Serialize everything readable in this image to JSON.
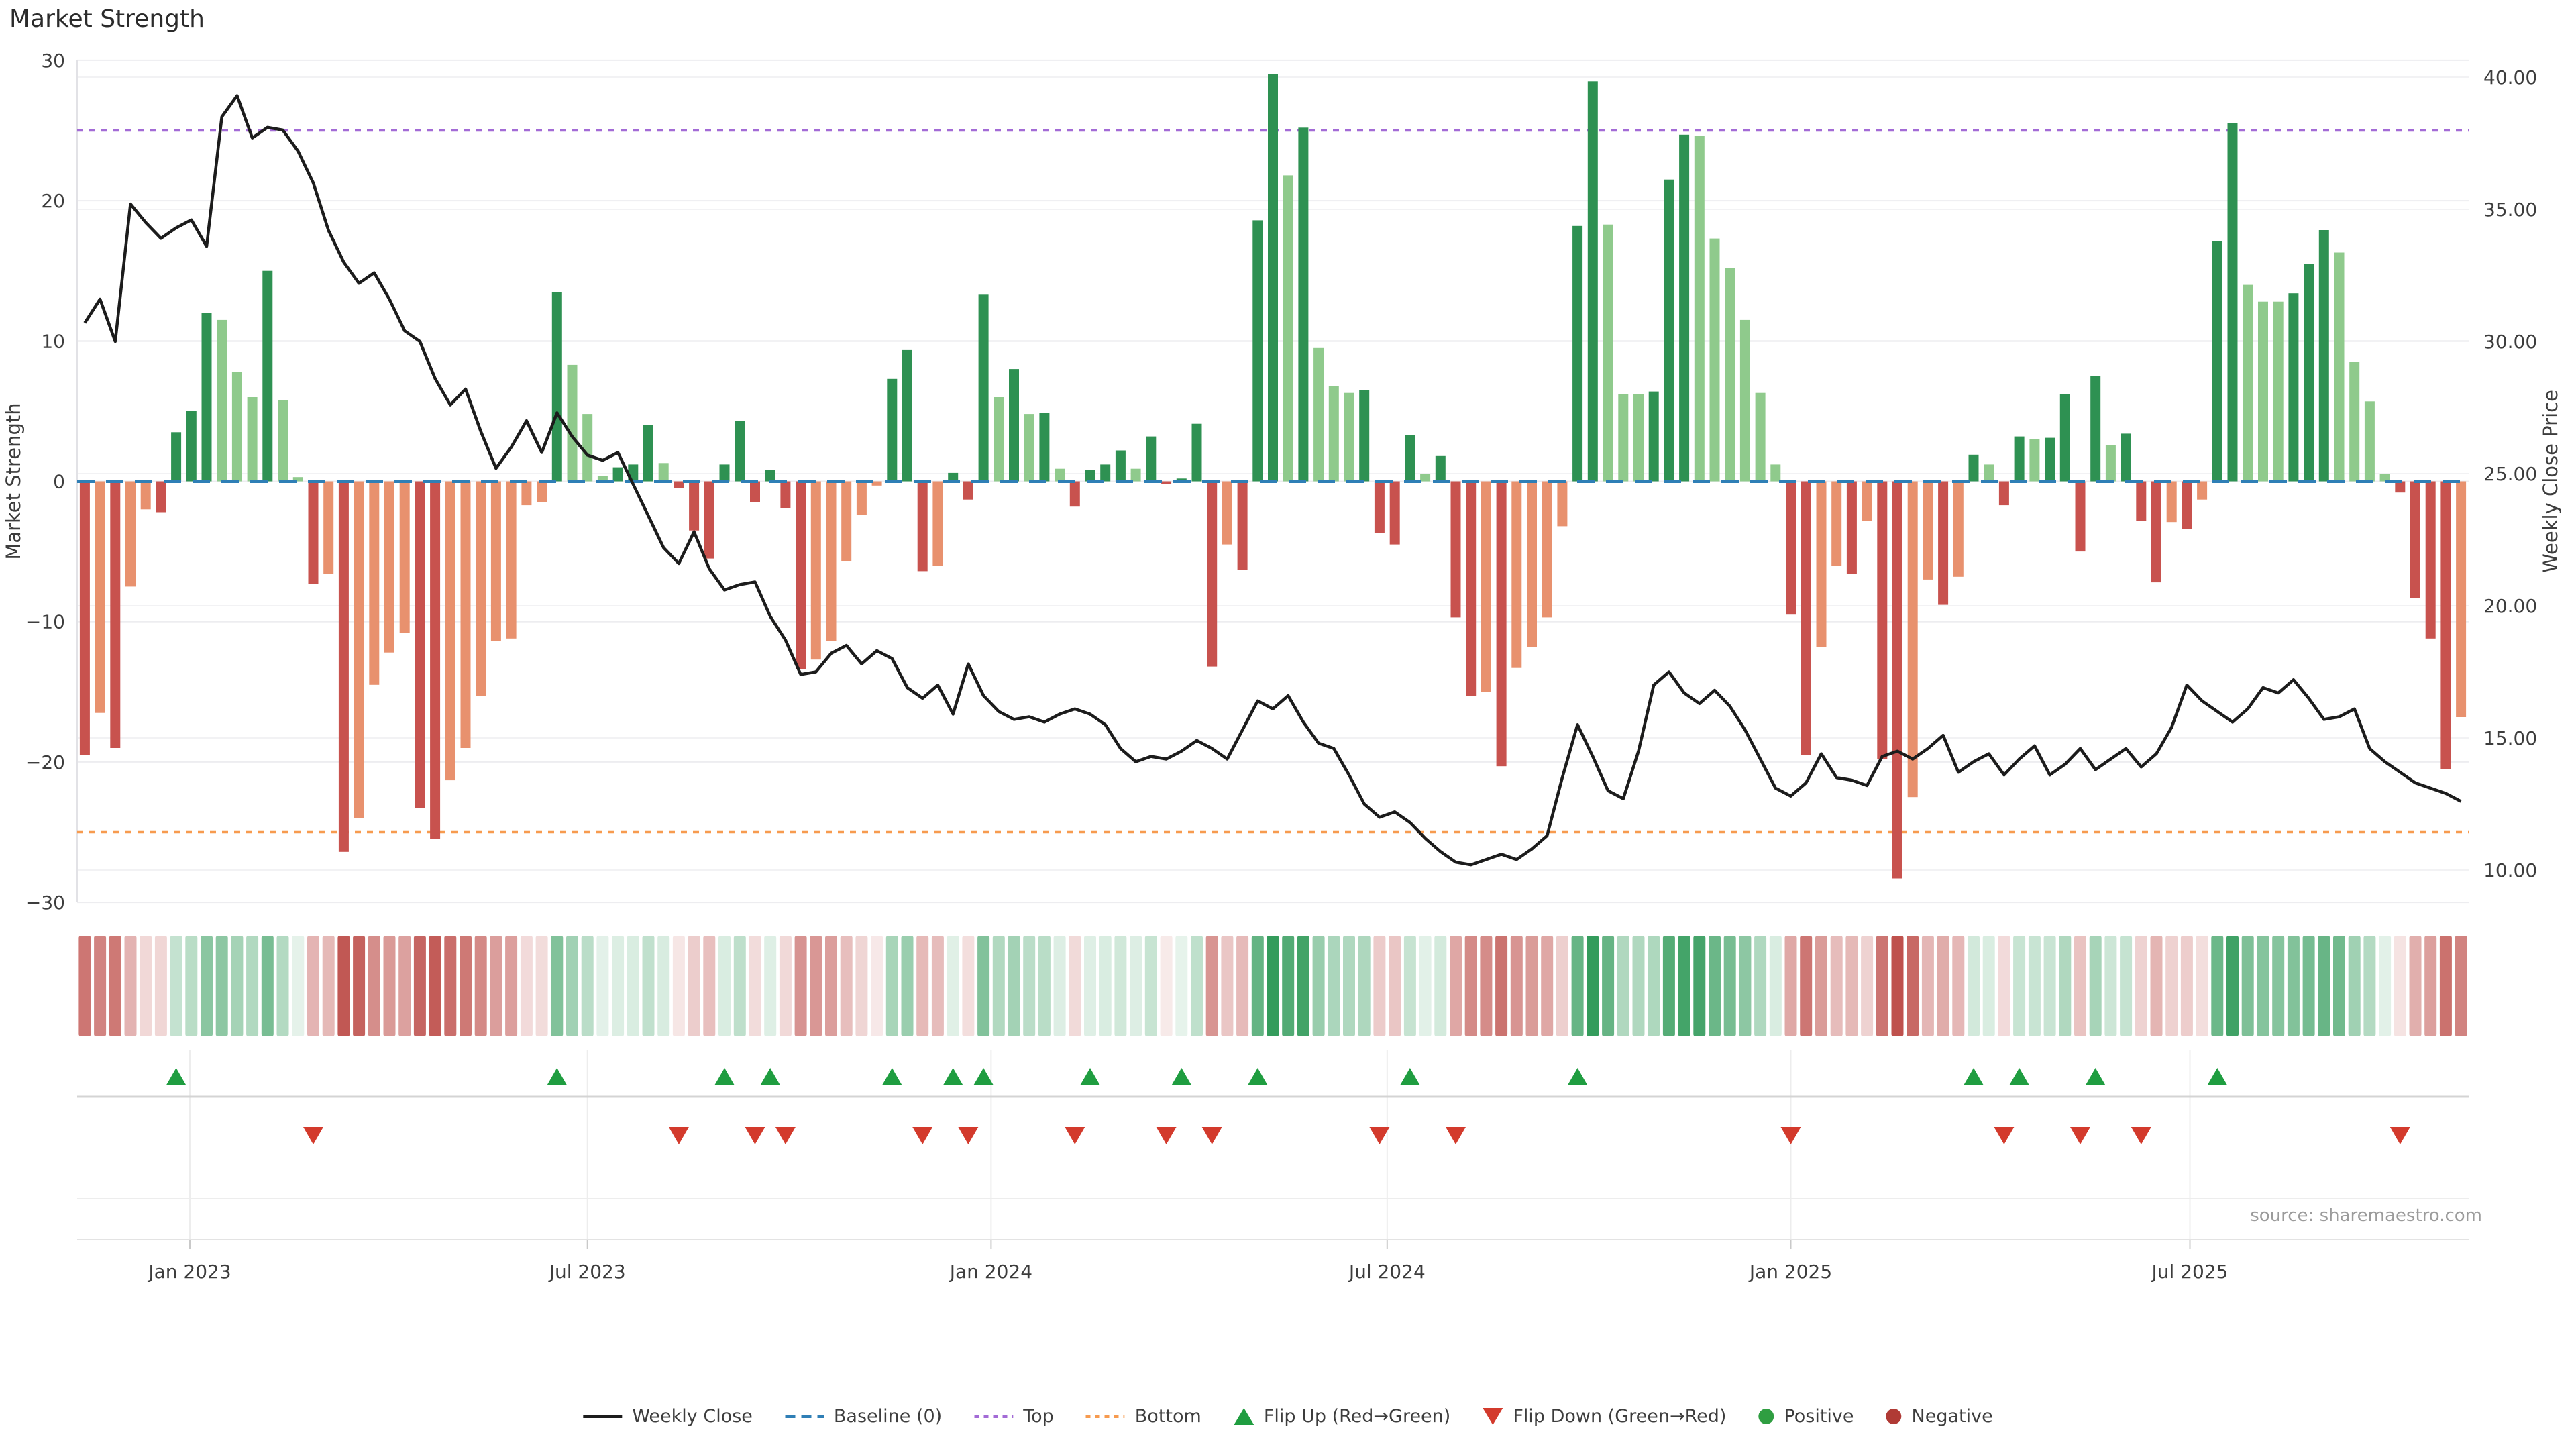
{
  "title": "Market Strength",
  "source": "source: sharemaestro.com",
  "axes": {
    "left_title": "Market Strength",
    "right_title": "Weekly Close Price",
    "left_ticks": [
      {
        "v": 30,
        "label": "30"
      },
      {
        "v": 20,
        "label": "20"
      },
      {
        "v": 10,
        "label": "10"
      },
      {
        "v": 0,
        "label": "0"
      },
      {
        "v": -10,
        "label": "−10"
      },
      {
        "v": -20,
        "label": "−20"
      },
      {
        "v": -30,
        "label": "−30"
      }
    ],
    "right_ticks": [
      {
        "p": 40,
        "label": "40.00"
      },
      {
        "p": 35,
        "label": "35.00"
      },
      {
        "p": 30,
        "label": "30.00"
      },
      {
        "p": 25,
        "label": "25.00"
      },
      {
        "p": 20,
        "label": "20.00"
      },
      {
        "p": 15,
        "label": "15.00"
      },
      {
        "p": 10,
        "label": "10.00"
      }
    ],
    "x_ticks": [
      {
        "week": 7.4,
        "label": "Jan 2023"
      },
      {
        "week": 33.5,
        "label": "Jul 2023"
      },
      {
        "week": 60.0,
        "label": "Jan 2024"
      },
      {
        "week": 86.0,
        "label": "Jul 2024"
      },
      {
        "week": 112.5,
        "label": "Jan 2025"
      },
      {
        "week": 138.7,
        "label": "Jul 2025"
      }
    ]
  },
  "legend": {
    "items": [
      {
        "label": "Weekly Close",
        "glyph": "line",
        "color": "#1c1c1c"
      },
      {
        "label": "Baseline (0)",
        "glyph": "dash",
        "color": "#2f7fb6"
      },
      {
        "label": "Top",
        "glyph": "dot",
        "color": "#a36bd6"
      },
      {
        "label": "Bottom",
        "glyph": "dot",
        "color": "#f79b4f"
      },
      {
        "label": "Flip Up (Red→Green)",
        "glyph": "tri-up",
        "color": "#1f9d40"
      },
      {
        "label": "Flip Down (Green→Red)",
        "glyph": "tri-down",
        "color": "#d33a2c"
      },
      {
        "label": "Positive",
        "glyph": "circle",
        "color": "#2f9e41"
      },
      {
        "label": "Negative",
        "glyph": "circle",
        "color": "#b03a35"
      }
    ]
  },
  "colors": {
    "pos_dark": "#2e9152",
    "pos_light": "#8fca8c",
    "neg_dark": "#c8524e",
    "neg_light": "#e8916e",
    "close_line": "#1c1c1c",
    "baseline": "#2f7fb6",
    "top_line": "#a36bd6",
    "bottom_line": "#f79b4f",
    "grid": "#ededf0",
    "spine": "#e2e2e6",
    "heat_pos": "#349c5c",
    "heat_neg": "#bf514d",
    "flip_up": "#1f9d40",
    "flip_down": "#d33a2c",
    "text": "#3d3d3d",
    "muted": "#9b9b9b"
  },
  "chart_data": {
    "type": "bar+line",
    "title": "Market Strength",
    "ylabel_left": "Market Strength",
    "ylabel_right": "Weekly Close Price",
    "ylim_left": [
      -30,
      30
    ],
    "baseline": 0,
    "top_threshold": 25,
    "bottom_threshold": -25,
    "series": [
      {
        "name": "Market Strength",
        "type": "bar",
        "axis": "left",
        "values": [
          -19.5,
          -16.5,
          -19,
          -7.5,
          -2,
          -2.2,
          3.5,
          5,
          12,
          11.5,
          7.8,
          6,
          15,
          5.8,
          0.3,
          -7.3,
          -6.6,
          -26.4,
          -24,
          -14.5,
          -12.2,
          -10.8,
          -23.3,
          -25.5,
          -21.3,
          -19,
          -15.3,
          -11.4,
          -11.2,
          -1.7,
          -1.5,
          13.5,
          8.3,
          4.8,
          0.4,
          1.0,
          1.2,
          4.0,
          1.3,
          -0.5,
          -3.5,
          -5.5,
          1.2,
          4.3,
          -1.5,
          0.8,
          -1.9,
          -13.4,
          -12.7,
          -11.4,
          -5.7,
          -2.4,
          -0.3,
          7.3,
          9.4,
          -6.4,
          -6.0,
          0.6,
          -1.3,
          13.3,
          6.0,
          8.0,
          4.8,
          4.9,
          0.9,
          -1.8,
          0.8,
          1.2,
          2.2,
          0.9,
          3.2,
          -0.2,
          0.2,
          4.1,
          -13.2,
          -4.5,
          -6.3,
          18.6,
          29,
          21.8,
          25.2,
          9.5,
          6.8,
          6.3,
          6.5,
          -3.7,
          -4.5,
          3.3,
          0.5,
          1.8,
          -9.7,
          -15.3,
          -15.0,
          -20.3,
          -13.3,
          -11.8,
          -9.7,
          -3.2,
          18.2,
          28.5,
          18.3,
          6.2,
          6.2,
          6.4,
          21.5,
          24.7,
          24.6,
          17.3,
          15.2,
          11.5,
          6.3,
          1.2,
          -9.5,
          -19.5,
          -11.8,
          -6.0,
          -6.6,
          -2.8,
          -19.8,
          -28.3,
          -22.5,
          -7.0,
          -8.8,
          -6.8,
          1.9,
          1.2,
          -1.7,
          3.2,
          3.0,
          3.1,
          6.2,
          -5.0,
          7.5,
          2.6,
          3.4,
          -2.8,
          -7.2,
          -2.9,
          -3.4,
          -1.3,
          17.1,
          25.5,
          14.0,
          12.8,
          12.8,
          13.4,
          15.5,
          17.9,
          16.3,
          8.5,
          5.7,
          0.5,
          -0.8,
          -8.3,
          -11.2,
          -20.5,
          -16.8
        ]
      },
      {
        "name": "Weekly Close",
        "type": "line",
        "axis": "right",
        "values": [
          30.7,
          31.6,
          30.0,
          35.2,
          34.5,
          33.9,
          34.3,
          34.6,
          33.6,
          38.5,
          39.3,
          37.7,
          38.1,
          38.0,
          37.2,
          36.0,
          34.2,
          33.0,
          32.2,
          32.6,
          31.6,
          30.4,
          30.0,
          28.6,
          27.6,
          28.2,
          26.6,
          25.2,
          26.0,
          27.0,
          25.8,
          27.3,
          26.4,
          25.7,
          25.5,
          25.8,
          24.6,
          23.4,
          22.2,
          21.6,
          22.8,
          21.4,
          20.6,
          20.8,
          20.9,
          19.6,
          18.7,
          17.4,
          17.5,
          18.2,
          18.5,
          17.8,
          18.3,
          18.0,
          16.9,
          16.5,
          17.0,
          15.9,
          17.8,
          16.6,
          16.0,
          15.7,
          15.8,
          15.6,
          15.9,
          16.1,
          15.9,
          15.5,
          14.6,
          14.1,
          14.3,
          14.2,
          14.5,
          14.9,
          14.6,
          14.2,
          15.3,
          16.4,
          16.1,
          16.6,
          15.6,
          14.8,
          14.6,
          13.6,
          12.5,
          12.0,
          12.2,
          11.8,
          11.2,
          10.7,
          10.3,
          10.2,
          10.4,
          10.6,
          10.4,
          10.8,
          11.3,
          13.5,
          15.5,
          14.3,
          13.0,
          12.7,
          14.5,
          17.0,
          17.5,
          16.7,
          16.3,
          16.8,
          16.2,
          15.3,
          14.2,
          13.1,
          12.8,
          13.3,
          14.4,
          13.5,
          13.4,
          13.2,
          14.3,
          14.5,
          14.2,
          14.6,
          15.1,
          13.7,
          14.1,
          14.4,
          13.6,
          14.2,
          14.7,
          13.6,
          14.0,
          14.6,
          13.8,
          14.2,
          14.6,
          13.9,
          14.4,
          15.4,
          17.0,
          16.4,
          16.0,
          15.6,
          16.1,
          16.9,
          16.7,
          17.2,
          16.5,
          15.7,
          15.8,
          16.1,
          14.6,
          14.1,
          13.7,
          13.3,
          13.1,
          12.9,
          12.6
        ]
      }
    ],
    "flip_up_weeks": [
      6,
      31,
      42,
      45,
      53,
      57,
      59,
      66,
      72,
      77,
      87,
      98,
      124,
      127,
      132,
      140
    ],
    "flip_down_weeks": [
      15,
      39,
      44,
      46,
      55,
      58,
      65,
      71,
      74,
      85,
      90,
      112,
      126,
      131,
      135,
      152
    ],
    "heatmap": "same weekly strength values, hue by sign, intensity by magnitude"
  }
}
